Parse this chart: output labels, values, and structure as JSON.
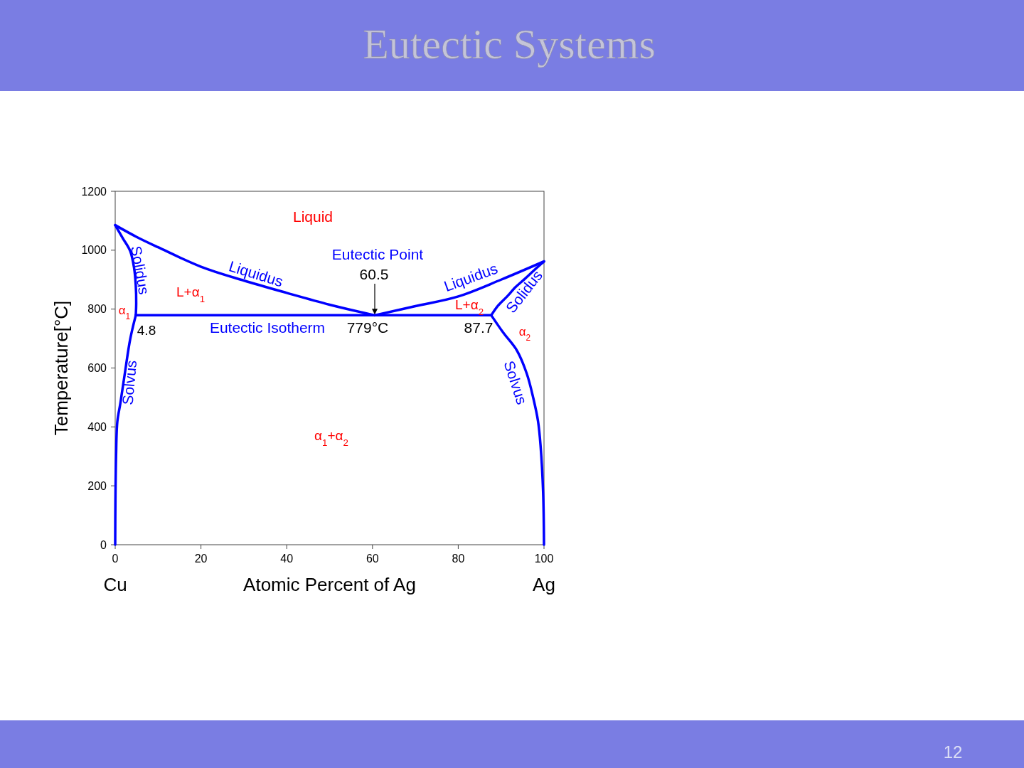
{
  "chart_data": {
    "type": "line",
    "title": "Eutectic Systems",
    "xlabel": "Atomic Percent of Ag",
    "ylabel": "Temperature[°C]",
    "xlim": [
      0,
      100
    ],
    "ylim": [
      0,
      1200
    ],
    "xticks": [
      0,
      20,
      40,
      60,
      80,
      100
    ],
    "yticks": [
      0,
      200,
      400,
      600,
      800,
      1000,
      1200
    ],
    "grid": false,
    "marker": "none",
    "line_style": "solid",
    "series": [
      {
        "color": "#0000ff",
        "x": [
          0,
          5,
          10,
          20,
          30,
          40,
          50,
          60.5
        ],
        "values": [
          1085,
          1045,
          1010,
          944,
          897,
          855,
          815,
          779
        ]
      },
      {
        "color": "#0000ff",
        "x": [
          60.5,
          70,
          80,
          90,
          100
        ],
        "values": [
          779,
          810,
          843,
          900,
          962
        ]
      },
      {
        "color": "#0000ff",
        "x": [
          4.8,
          87.7
        ],
        "values": [
          779,
          779
        ]
      },
      {
        "color": "#0000ff",
        "x": [
          0,
          1.8,
          3.5,
          4.4,
          4.8,
          4.9,
          4.8
        ],
        "values": [
          1085,
          1040,
          997,
          940,
          880,
          820,
          779
        ]
      },
      {
        "color": "#0000ff",
        "x": [
          4.8,
          3.5,
          2.2,
          1.2,
          0.5,
          0.2,
          0.05,
          0
        ],
        "values": [
          779,
          698,
          577,
          480,
          418,
          300,
          150,
          0
        ]
      },
      {
        "color": "#0000ff",
        "x": [
          87.7,
          89.3,
          91.4,
          93.4,
          95.4,
          97.7,
          100
        ],
        "values": [
          779,
          812,
          843,
          875,
          901,
          932,
          962
        ]
      },
      {
        "color": "#0000ff",
        "x": [
          87.7,
          90.5,
          93.7,
          96,
          97.5,
          98.6,
          99.2,
          99.8,
          100
        ],
        "values": [
          779,
          720,
          659,
          580,
          498,
          420,
          336,
          176,
          0
        ]
      }
    ],
    "annotations": [
      "Liquid",
      "Liquidus",
      "Liquidus",
      "Solidus",
      "Solidus",
      "Solvus",
      "Solvus",
      "Eutectic Point",
      "60.5",
      "Eutectic Isotherm",
      "779°C",
      "4.8",
      "87.7",
      "L+α$_{1}$",
      "α$_{1}$",
      "L+α$_{2}$",
      "α$_{2}$",
      "α$_{1}$+α$_{2}$",
      "Cu",
      "Ag",
      "12"
    ]
  }
}
